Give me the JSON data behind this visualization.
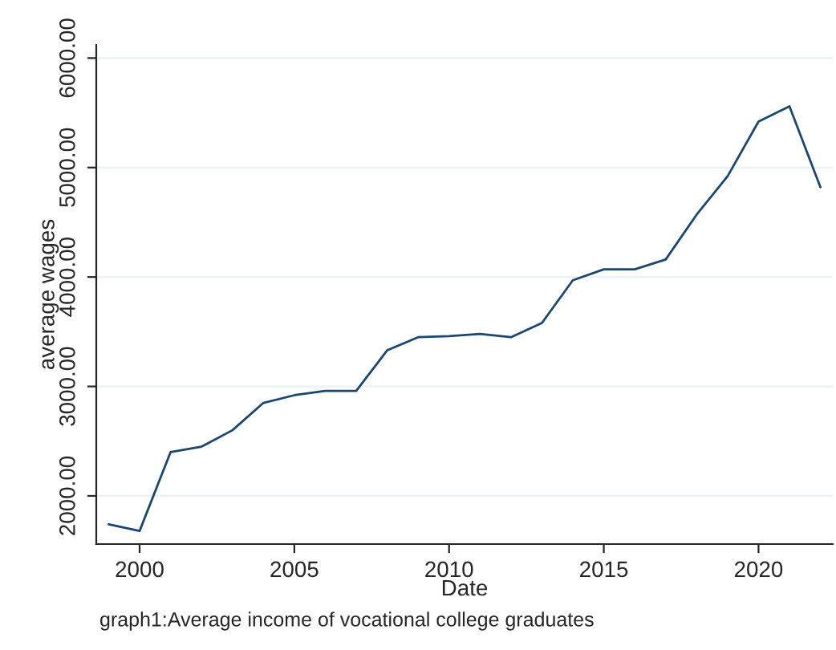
{
  "chart_data": {
    "type": "line",
    "xlabel": "Date",
    "ylabel": "average wages",
    "x": [
      1999,
      2000,
      2001,
      2002,
      2003,
      2004,
      2005,
      2006,
      2007,
      2008,
      2009,
      2010,
      2011,
      2012,
      2013,
      2014,
      2015,
      2016,
      2017,
      2018,
      2019,
      2020,
      2021,
      2022
    ],
    "series": [
      {
        "color": "#1a476f",
        "values": [
          1740,
          1680,
          2400,
          2450,
          2600,
          2850,
          2920,
          2960,
          2960,
          3330,
          3450,
          3460,
          3480,
          3450,
          3580,
          3970,
          4070,
          4070,
          4160,
          4570,
          4920,
          5420,
          5560,
          4820
        ]
      }
    ],
    "xlim": [
      1998.6,
      2022.4
    ],
    "ylim": [
      1560,
      6120
    ],
    "xticks": [
      2000,
      2005,
      2010,
      2015,
      2020
    ],
    "yticks": [
      {
        "value": 2000,
        "label": "2000.00"
      },
      {
        "value": 3000,
        "label": "3000.00"
      },
      {
        "value": 4000,
        "label": "4000.00"
      },
      {
        "value": 5000,
        "label": "5000.00"
      },
      {
        "value": 6000,
        "label": "6000.00"
      }
    ],
    "grid": "y",
    "annotations": [
      "graph1:Average income of vocational college graduates"
    ]
  }
}
